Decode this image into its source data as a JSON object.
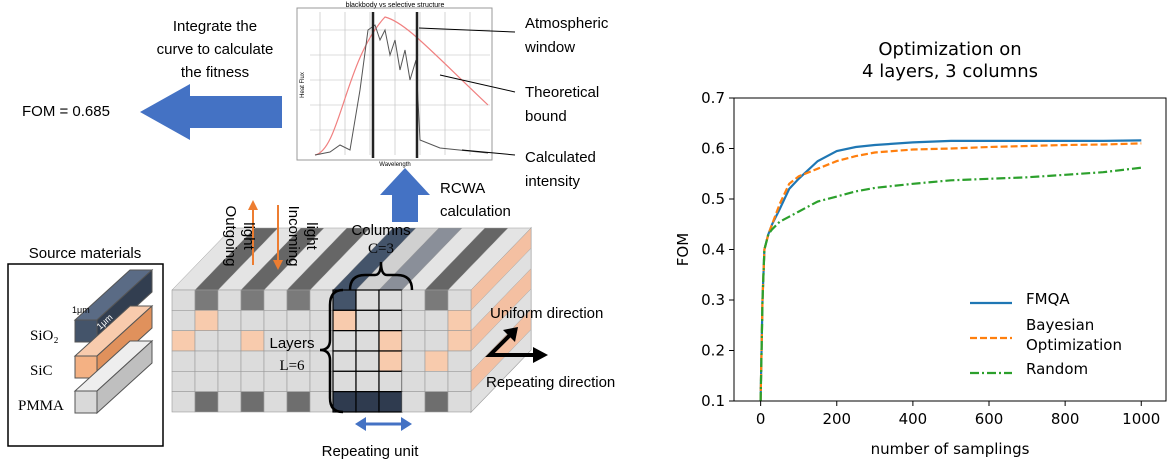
{
  "diagram": {
    "integrate_note": [
      "Integrate the",
      "curve to calculate",
      "the fitness"
    ],
    "fom": "FOM = 0.685",
    "inset_title": "blackbody vs selective structure",
    "inset_xlabel": "Wavelength",
    "inset_ylabel": "Heat Flux",
    "atmospheric_window": [
      "Atmospheric",
      "window"
    ],
    "theoretical_bound": [
      "Theoretical",
      "bound"
    ],
    "calculated_intensity": [
      "Calculated",
      "intensity"
    ],
    "rcwa": [
      "RCWA",
      "calculation"
    ],
    "outgoing": [
      "Outgoing",
      "light"
    ],
    "incoming": [
      "Incoming",
      "light"
    ],
    "columns": [
      "Columns",
      "C=3"
    ],
    "layers": [
      "Layers",
      "L=6"
    ],
    "source_materials": "Source materials",
    "materials": [
      "SiO₂",
      "SiC",
      "PMMA"
    ],
    "unit_width": "1μm",
    "unit_depth": "1μm",
    "uniform_direction": "Uniform direction",
    "repeating_direction": "Repeating direction",
    "repeating_unit": "Repeating unit"
  },
  "chart_data": {
    "type": "line",
    "title": [
      "Optimization on",
      "4 layers, 3 columns"
    ],
    "xlabel": "number of samplings",
    "ylabel": "FOM",
    "x": [
      0,
      5,
      10,
      20,
      30,
      50,
      75,
      100,
      150,
      200,
      250,
      300,
      400,
      500,
      600,
      700,
      800,
      900,
      1000
    ],
    "series": [
      {
        "name": "FMQA",
        "color": "#1f77b4",
        "dash": "solid",
        "values": [
          0.1,
          0.3,
          0.4,
          0.43,
          0.45,
          0.48,
          0.52,
          0.54,
          0.575,
          0.595,
          0.603,
          0.607,
          0.612,
          0.615,
          0.615,
          0.615,
          0.615,
          0.615,
          0.616
        ]
      },
      {
        "name": "Bayesian Optimization",
        "color": "#ff7f0e",
        "dash": "dashed",
        "values": [
          0.1,
          0.3,
          0.4,
          0.43,
          0.45,
          0.49,
          0.53,
          0.545,
          0.56,
          0.575,
          0.585,
          0.592,
          0.598,
          0.6,
          0.603,
          0.605,
          0.607,
          0.608,
          0.61
        ]
      },
      {
        "name": "Random",
        "color": "#2ca02c",
        "dash": "dashdot",
        "values": [
          0.1,
          0.3,
          0.4,
          0.43,
          0.44,
          0.455,
          0.465,
          0.475,
          0.495,
          0.505,
          0.515,
          0.522,
          0.53,
          0.537,
          0.54,
          0.543,
          0.548,
          0.553,
          0.562
        ]
      }
    ],
    "xlim": [
      -70,
      1065
    ],
    "ylim": [
      0.1,
      0.7
    ],
    "xticks": [
      0,
      200,
      400,
      600,
      800,
      1000
    ],
    "yticks": [
      0.1,
      0.2,
      0.3,
      0.4,
      0.5,
      0.6,
      0.7
    ],
    "legend": "lower right",
    "grid": false
  }
}
